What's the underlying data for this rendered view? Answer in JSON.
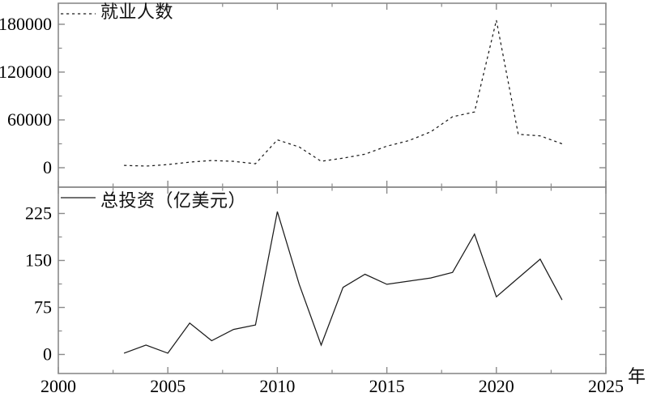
{
  "page": {
    "background": "#ffffff"
  },
  "colors": {
    "frame": "#8a8a8a",
    "series": "#1c1c1c",
    "text": "#000000"
  },
  "x_axis": {
    "unit_label": "年",
    "min": 2000,
    "max": 2025,
    "major_ticks": [
      2000,
      2005,
      2010,
      2015,
      2020,
      2025
    ],
    "major_tick_labels": [
      "2000",
      "2005",
      "2010",
      "2015",
      "2020",
      "2025"
    ],
    "minor_ticks": [
      2002.5,
      2007.5,
      2012.5,
      2017.5,
      2022.5
    ]
  },
  "chart_data": [
    {
      "type": "line",
      "legend": "就业人数",
      "line_style": "dotted",
      "x": [
        2003,
        2004,
        2005,
        2006,
        2007,
        2008,
        2009,
        2010,
        2011,
        2012,
        2013,
        2014,
        2015,
        2016,
        2017,
        2018,
        2019,
        2020,
        2021,
        2022,
        2023
      ],
      "values": [
        3000,
        2000,
        4000,
        7000,
        9000,
        8000,
        5000,
        35000,
        26000,
        8000,
        12000,
        17000,
        27000,
        34000,
        45000,
        64000,
        70000,
        185000,
        42000,
        40000,
        30000
      ],
      "yticks": [
        0,
        60000,
        120000,
        180000
      ],
      "ytick_labels": [
        "0",
        "60000",
        "120000",
        "180000"
      ],
      "minor_yticks": [
        30000,
        90000,
        150000
      ],
      "ylim": [
        -24400,
        206400
      ],
      "grid": false,
      "legend_position": "top-left"
    },
    {
      "type": "line",
      "legend": "总投资（亿美元）",
      "line_style": "solid",
      "x": [
        2003,
        2004,
        2005,
        2006,
        2007,
        2008,
        2009,
        2010,
        2011,
        2012,
        2013,
        2014,
        2015,
        2016,
        2017,
        2018,
        2019,
        2020,
        2021,
        2022,
        2023
      ],
      "values": [
        2,
        15,
        2,
        50,
        22,
        40,
        47,
        228,
        112,
        15,
        107,
        128,
        112,
        117,
        122,
        131,
        192,
        92,
        122,
        152,
        87
      ],
      "yticks": [
        0,
        75,
        150,
        225
      ],
      "ytick_labels": [
        "0",
        "75",
        "150",
        "225"
      ],
      "minor_yticks": [
        37.5,
        112.5,
        187.5
      ],
      "ylim": [
        -30.4,
        267
      ],
      "grid": false,
      "legend_position": "top-left"
    }
  ]
}
